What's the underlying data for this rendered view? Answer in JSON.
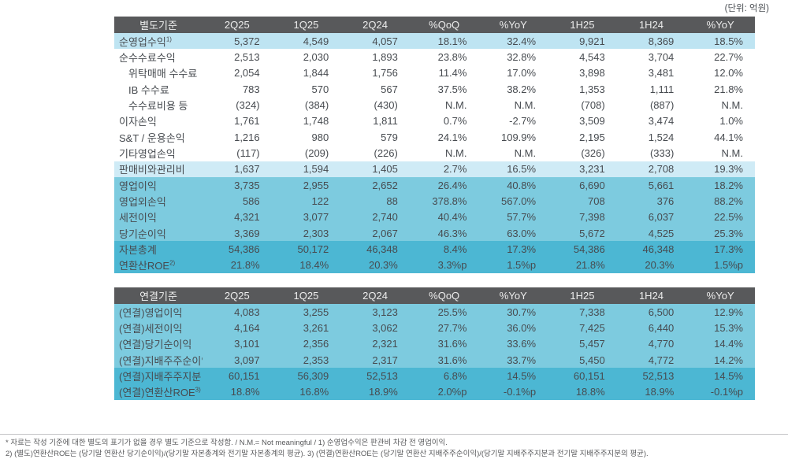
{
  "unit_label": "(단위: 억원)",
  "colors": {
    "header_bg": "#58595b",
    "header_text": "#ededed",
    "row_light_blue": "#bee4f2",
    "row_lighter_blue": "#cfebf6",
    "row_mid_blue": "#7dcbdf",
    "row_dark_blue": "#4cb7d3",
    "body_text": "#474b50"
  },
  "table1": {
    "headers": [
      "별도기준",
      "2Q25",
      "1Q25",
      "2Q24",
      "%QoQ",
      "%YoY",
      "1H25",
      "1H24",
      "%YoY"
    ],
    "rows": [
      {
        "label": "순영업수익",
        "sup": "1)",
        "indent": false,
        "style": "light1",
        "values": [
          "5,372",
          "4,549",
          "4,057",
          "18.1%",
          "32.4%",
          "9,921",
          "8,369",
          "18.5%"
        ]
      },
      {
        "label": "순수수료수익",
        "indent": false,
        "style": "white",
        "values": [
          "2,513",
          "2,030",
          "1,893",
          "23.8%",
          "32.8%",
          "4,543",
          "3,704",
          "22.7%"
        ]
      },
      {
        "label": "위탁매매 수수료",
        "indent": true,
        "style": "white",
        "values": [
          "2,054",
          "1,844",
          "1,756",
          "11.4%",
          "17.0%",
          "3,898",
          "3,481",
          "12.0%"
        ]
      },
      {
        "label": "IB 수수료",
        "indent": true,
        "style": "white",
        "values": [
          "783",
          "570",
          "567",
          "37.5%",
          "38.2%",
          "1,353",
          "1,111",
          "21.8%"
        ]
      },
      {
        "label": "수수료비용 등",
        "indent": true,
        "style": "white",
        "values": [
          "(324)",
          "(384)",
          "(430)",
          "N.M.",
          "N.M.",
          "(708)",
          "(887)",
          "N.M."
        ]
      },
      {
        "label": "이자손익",
        "indent": false,
        "style": "white",
        "values": [
          "1,761",
          "1,748",
          "1,811",
          "0.7%",
          "-2.7%",
          "3,509",
          "3,474",
          "1.0%"
        ]
      },
      {
        "label": "S&T / 운용손익",
        "indent": false,
        "style": "white",
        "values": [
          "1,216",
          "980",
          "579",
          "24.1%",
          "109.9%",
          "2,195",
          "1,524",
          "44.1%"
        ]
      },
      {
        "label": "기타영업손익",
        "indent": false,
        "style": "white",
        "values": [
          "(117)",
          "(209)",
          "(226)",
          "N.M.",
          "N.M.",
          "(326)",
          "(333)",
          "N.M."
        ]
      },
      {
        "label": "판매비와관리비",
        "indent": false,
        "style": "light2",
        "values": [
          "1,637",
          "1,594",
          "1,405",
          "2.7%",
          "16.5%",
          "3,231",
          "2,708",
          "19.3%"
        ]
      },
      {
        "label": "영업이익",
        "indent": false,
        "style": "mid",
        "values": [
          "3,735",
          "2,955",
          "2,652",
          "26.4%",
          "40.8%",
          "6,690",
          "5,661",
          "18.2%"
        ]
      },
      {
        "label": "영업외손익",
        "indent": false,
        "style": "mid",
        "values": [
          "586",
          "122",
          "88",
          "378.8%",
          "567.0%",
          "708",
          "376",
          "88.2%"
        ]
      },
      {
        "label": "세전이익",
        "indent": false,
        "style": "mid",
        "values": [
          "4,321",
          "3,077",
          "2,740",
          "40.4%",
          "57.7%",
          "7,398",
          "6,037",
          "22.5%"
        ]
      },
      {
        "label": "당기순이익",
        "indent": false,
        "style": "mid",
        "values": [
          "3,369",
          "2,303",
          "2,067",
          "46.3%",
          "63.0%",
          "5,672",
          "4,525",
          "25.3%"
        ]
      },
      {
        "label": "자본총계",
        "indent": false,
        "style": "dark",
        "values": [
          "54,386",
          "50,172",
          "46,348",
          "8.4%",
          "17.3%",
          "54,386",
          "46,348",
          "17.3%"
        ]
      },
      {
        "label": "연환산ROE",
        "sup": "2)",
        "indent": false,
        "style": "dark",
        "values": [
          "21.8%",
          "18.4%",
          "20.3%",
          "3.3%p",
          "1.5%p",
          "21.8%",
          "20.3%",
          "1.5%p"
        ]
      }
    ]
  },
  "table2": {
    "headers": [
      "연결기준",
      "2Q25",
      "1Q25",
      "2Q24",
      "%QoQ",
      "%YoY",
      "1H25",
      "1H24",
      "%YoY"
    ],
    "rows": [
      {
        "label": "(연결)영업이익",
        "indent": false,
        "style": "mid",
        "values": [
          "4,083",
          "3,255",
          "3,123",
          "25.5%",
          "30.7%",
          "7,338",
          "6,500",
          "12.9%"
        ]
      },
      {
        "label": "(연결)세전이익",
        "indent": false,
        "style": "mid",
        "values": [
          "4,164",
          "3,261",
          "3,062",
          "27.7%",
          "36.0%",
          "7,425",
          "6,440",
          "15.3%"
        ]
      },
      {
        "label": "(연결)당기순이익",
        "indent": false,
        "style": "mid",
        "values": [
          "3,101",
          "2,356",
          "2,321",
          "31.6%",
          "33.6%",
          "5,457",
          "4,770",
          "14.4%"
        ]
      },
      {
        "label": "(연결)지배주주순이익",
        "indent": false,
        "style": "mid",
        "values": [
          "3,097",
          "2,353",
          "2,317",
          "31.6%",
          "33.7%",
          "5,450",
          "4,772",
          "14.2%"
        ]
      },
      {
        "label": "(연결)지배주주지분",
        "indent": false,
        "style": "dark",
        "values": [
          "60,151",
          "56,309",
          "52,513",
          "6.8%",
          "14.5%",
          "60,151",
          "52,513",
          "14.5%"
        ]
      },
      {
        "label": "(연결)연환산ROE",
        "sup": "3)",
        "indent": false,
        "style": "dark",
        "values": [
          "18.8%",
          "16.8%",
          "18.9%",
          "2.0%p",
          "-0.1%p",
          "18.8%",
          "18.9%",
          "-0.1%p"
        ]
      }
    ]
  },
  "footnotes": [
    "* 자료는 작성 기준에 대한 별도의 표기가 없을 경우 별도 기준으로 작성함. / N.M.= Not meaningful / 1) 순영업수익은 판관비 차감 전 영업이익.",
    "2) (별도)연환산ROE는 (당기말 연환산 당기순이익)/(당기말 자본총계와 전기말 자본총계의 평균).  3) (연결)연환산ROE는 (당기말 연환산 지배주주순이익)/(당기말 지배주주지분과 전기말 지배주주지분의 평균)."
  ]
}
